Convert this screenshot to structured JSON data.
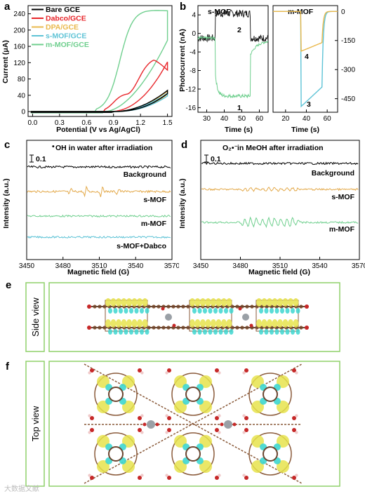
{
  "panel_a": {
    "label": "a",
    "xlabel": "Potential (V vs Ag/AgCl)",
    "ylabel": "Current (μA)",
    "xticks": [
      "0.0",
      "0.3",
      "0.6",
      "0.9",
      "1.2",
      "1.5"
    ],
    "yticks": [
      "0",
      "40",
      "80",
      "120",
      "160",
      "200",
      "240"
    ],
    "legend": [
      {
        "name": "Bare GCE",
        "color": "#000000"
      },
      {
        "name": "Dabco/GCE",
        "color": "#e8262b"
      },
      {
        "name": "DPA/GCE",
        "color": "#eab84b"
      },
      {
        "name": "s-MOF/GCE",
        "color": "#5ec3d6"
      },
      {
        "name": "m-MOF/GCE",
        "color": "#6fcf8e"
      }
    ]
  },
  "panel_b": {
    "label": "b",
    "ylabel": "Photocurrent (nA)",
    "left_title": "s-MOF",
    "right_title": "m-MOF",
    "xlabel": "Time (s)",
    "left_xticks": [
      "30",
      "40",
      "50",
      "60"
    ],
    "right_xticks": [
      "20",
      "40",
      "60"
    ],
    "left_yticks": [
      "4",
      "0",
      "-4",
      "-8",
      "-12",
      "-16"
    ],
    "right_yticks": [
      "0",
      "-150",
      "-300",
      "-450"
    ],
    "curve_labels": [
      "1",
      "2",
      "3",
      "4"
    ]
  },
  "panel_c": {
    "label": "c",
    "title_prefix": "•",
    "title": "OH in water after irradiation",
    "scale": "0.1",
    "ylabel": "Intensity (a.u.)",
    "xlabel": "Magnetic field (G)",
    "xticks": [
      "3450",
      "3480",
      "3510",
      "3540",
      "3570"
    ],
    "traces": [
      {
        "name": "Background",
        "color": "#000000"
      },
      {
        "name": "s-MOF",
        "color": "#e3a94a"
      },
      {
        "name": "m-MOF",
        "color": "#6fcf8e"
      },
      {
        "name": "s-MOF+Dabco",
        "color": "#5ec3d6"
      }
    ]
  },
  "panel_d": {
    "label": "d",
    "title_species": "O₂•⁻",
    "title": " in MeOH after irradiation",
    "scale": "0.1",
    "ylabel": "Intensity (a.u.)",
    "xlabel": "Magnetic field (G)",
    "xticks": [
      "3450",
      "3480",
      "3510",
      "3540",
      "3570"
    ],
    "traces": [
      {
        "name": "Background",
        "color": "#000000"
      },
      {
        "name": "s-MOF",
        "color": "#e3a94a"
      },
      {
        "name": "m-MOF",
        "color": "#6fcf8e"
      }
    ]
  },
  "panel_e": {
    "label": "e",
    "view": "Side view"
  },
  "panel_f": {
    "label": "f",
    "view": "Top view"
  },
  "watermark": "大数据文献"
}
